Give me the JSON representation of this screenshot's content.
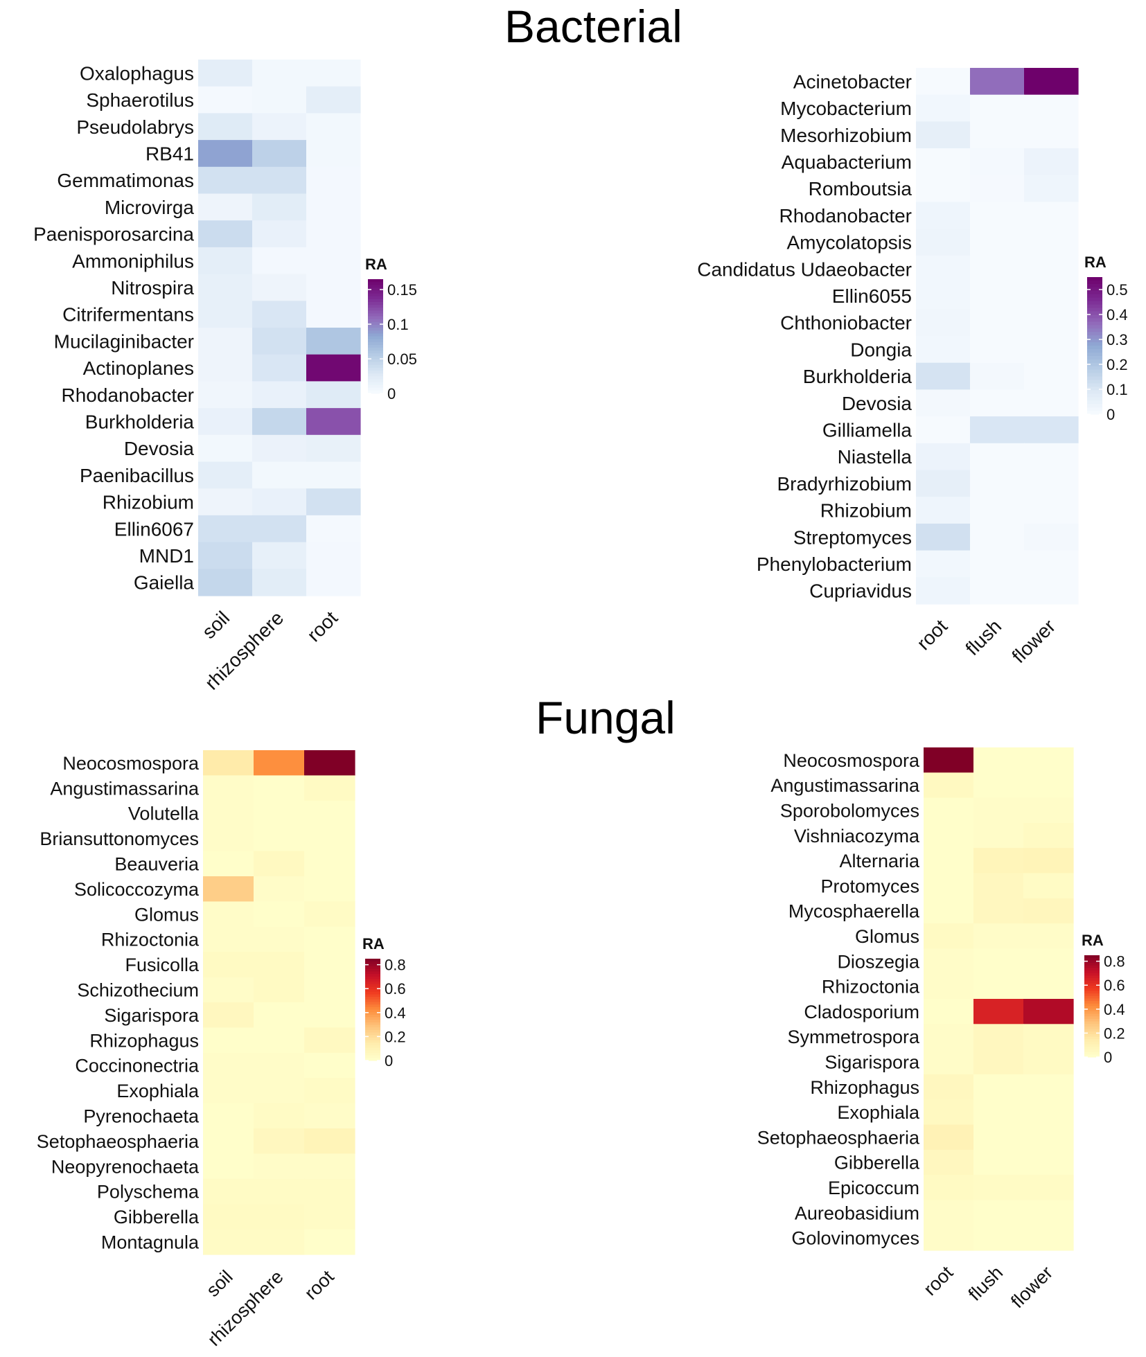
{
  "titles": {
    "bacterial": "Bacterial",
    "fungal": "Fungal"
  },
  "palettes": {
    "bacterial": [
      "#f7fbff",
      "#dde9f5",
      "#b6cce5",
      "#8fa9d4",
      "#9168b9",
      "#7c2a93",
      "#6e016b"
    ],
    "fungal": [
      "#ffffcc",
      "#ffedad",
      "#fec47c",
      "#fd8d3c",
      "#f03b20",
      "#c61028",
      "#800026"
    ]
  },
  "chart_data": [
    {
      "type": "heatmap",
      "id": "bacterial-compartment",
      "x": [
        "soil",
        "rhizosphere",
        "root"
      ],
      "y": [
        "Oxalophagus",
        "Sphaerotilus",
        "Pseudolabrys",
        "RB41",
        "Gemmatimonas",
        "Microvirga",
        "Paenisporosarcina",
        "Ammoniphilus",
        "Nitrospira",
        "Citrifermentans",
        "Mucilaginibacter",
        "Actinoplanes",
        "Rhodanobacter",
        "Burkholderia",
        "Devosia",
        "Paenibacillus",
        "Rhizobium",
        "Ellin6067",
        "MND1",
        "Gaiella"
      ],
      "values": [
        [
          0.02,
          0.005,
          0.005
        ],
        [
          0.003,
          0.005,
          0.02
        ],
        [
          0.025,
          0.012,
          0.005
        ],
        [
          0.085,
          0.05,
          0.005
        ],
        [
          0.035,
          0.035,
          0.004
        ],
        [
          0.01,
          0.022,
          0.004
        ],
        [
          0.04,
          0.015,
          0.004
        ],
        [
          0.02,
          0.004,
          0.004
        ],
        [
          0.017,
          0.01,
          0.004
        ],
        [
          0.017,
          0.03,
          0.004
        ],
        [
          0.01,
          0.035,
          0.06
        ],
        [
          0.01,
          0.03,
          0.16
        ],
        [
          0.007,
          0.015,
          0.025
        ],
        [
          0.015,
          0.045,
          0.12
        ],
        [
          0.005,
          0.013,
          0.016
        ],
        [
          0.02,
          0.005,
          0.005
        ],
        [
          0.01,
          0.015,
          0.035
        ],
        [
          0.035,
          0.035,
          0.003
        ],
        [
          0.04,
          0.017,
          0.004
        ],
        [
          0.045,
          0.022,
          0.004
        ]
      ],
      "legend": {
        "title": "RA",
        "ticks": [
          0,
          0.05,
          0.1,
          0.15
        ],
        "tick_labels": [
          "0",
          "0.05",
          "0.1",
          "0.15"
        ],
        "range": [
          0,
          0.165
        ]
      }
    },
    {
      "type": "heatmap",
      "id": "bacterial-organ",
      "x": [
        "root",
        "flush",
        "flower"
      ],
      "y": [
        "Acinetobacter",
        "Mycobacterium",
        "Mesorhizobium",
        "Aquabacterium",
        "Romboutsia",
        "Rhodanobacter",
        "Amycolatopsis",
        "Candidatus Udaeobacter",
        "Ellin6055",
        "Chthoniobacter",
        "Dongia",
        "Burkholderia",
        "Devosia",
        "Gilliamella",
        "Niastella",
        "Bradyrhizobium",
        "Rhizobium",
        "Streptomyces",
        "Phenylobacterium",
        "Cupriavidus"
      ],
      "values": [
        [
          0.005,
          0.36,
          0.55
        ],
        [
          0.02,
          0.005,
          0.005
        ],
        [
          0.06,
          0.005,
          0.005
        ],
        [
          0.005,
          0.01,
          0.04
        ],
        [
          0.005,
          0.008,
          0.03
        ],
        [
          0.03,
          0.005,
          0.005
        ],
        [
          0.035,
          0.005,
          0.005
        ],
        [
          0.02,
          0.005,
          0.005
        ],
        [
          0.02,
          0.005,
          0.005
        ],
        [
          0.025,
          0.005,
          0.005
        ],
        [
          0.02,
          0.005,
          0.005
        ],
        [
          0.11,
          0.015,
          0.005
        ],
        [
          0.015,
          0.005,
          0.005
        ],
        [
          0.005,
          0.1,
          0.1
        ],
        [
          0.04,
          0.005,
          0.005
        ],
        [
          0.06,
          0.005,
          0.005
        ],
        [
          0.03,
          0.005,
          0.005
        ],
        [
          0.12,
          0.005,
          0.015
        ],
        [
          0.02,
          0.005,
          0.005
        ],
        [
          0.03,
          0.005,
          0.005
        ]
      ],
      "legend": {
        "title": "RA",
        "ticks": [
          0,
          0.1,
          0.2,
          0.3,
          0.4,
          0.5
        ],
        "tick_labels": [
          "0",
          "0.1",
          "0.2",
          "0.3",
          "0.4",
          "0.5"
        ],
        "range": [
          0,
          0.55
        ]
      }
    },
    {
      "type": "heatmap",
      "id": "fungal-compartment",
      "x": [
        "soil",
        "rhizosphere",
        "root"
      ],
      "y": [
        "Neocosmospora",
        "Angustimassarina",
        "Volutella",
        "Briansuttonomyces",
        "Beauveria",
        "Solicoccozyma",
        "Glomus",
        "Rhizoctonia",
        "Fusicolla",
        "Schizothecium",
        "Sigarispora",
        "Rhizophagus",
        "Coccinonectria",
        "Exophiala",
        "Pyrenochaeta",
        "Setophaeosphaeria",
        "Neopyrenochaeta",
        "Polyschema",
        "Gibberella",
        "Montagnula"
      ],
      "values": [
        [
          0.15,
          0.42,
          0.85
        ],
        [
          0.02,
          0.01,
          0.04
        ],
        [
          0.02,
          0.01,
          0.01
        ],
        [
          0.02,
          0.01,
          0.01
        ],
        [
          0.01,
          0.05,
          0.01
        ],
        [
          0.25,
          0.02,
          0.01
        ],
        [
          0.02,
          0.01,
          0.03
        ],
        [
          0.02,
          0.02,
          0.01
        ],
        [
          0.04,
          0.04,
          0.01
        ],
        [
          0.02,
          0.04,
          0.01
        ],
        [
          0.06,
          0.01,
          0.01
        ],
        [
          0.01,
          0.01,
          0.05
        ],
        [
          0.02,
          0.02,
          0.01
        ],
        [
          0.02,
          0.02,
          0.03
        ],
        [
          0.01,
          0.03,
          0.02
        ],
        [
          0.01,
          0.06,
          0.09
        ],
        [
          0.01,
          0.02,
          0.02
        ],
        [
          0.03,
          0.03,
          0.03
        ],
        [
          0.04,
          0.04,
          0.03
        ],
        [
          0.03,
          0.03,
          0.01
        ]
      ],
      "legend": {
        "title": "RA",
        "ticks": [
          0,
          0.2,
          0.4,
          0.6,
          0.8
        ],
        "tick_labels": [
          "0",
          "0.2",
          "0.4",
          "0.6",
          "0.8"
        ],
        "range": [
          0,
          0.85
        ]
      }
    },
    {
      "type": "heatmap",
      "id": "fungal-organ",
      "x": [
        "root",
        "flush",
        "flower"
      ],
      "y": [
        "Neocosmospora",
        "Angustimassarina",
        "Sporobolomyces",
        "Vishniacozyma",
        "Alternaria",
        "Protomyces",
        "Mycosphaerella",
        "Glomus",
        "Dioszegia",
        "Rhizoctonia",
        "Cladosporium",
        "Symmetrospora",
        "Sigarispora",
        "Rhizophagus",
        "Exophiala",
        "Setophaeosphaeria",
        "Gibberella",
        "Epicoccum",
        "Aureobasidium",
        "Golovinomyces"
      ],
      "values": [
        [
          0.85,
          0.01,
          0.01
        ],
        [
          0.05,
          0.01,
          0.01
        ],
        [
          0.01,
          0.02,
          0.02
        ],
        [
          0.01,
          0.02,
          0.04
        ],
        [
          0.01,
          0.08,
          0.09
        ],
        [
          0.01,
          0.06,
          0.03
        ],
        [
          0.01,
          0.06,
          0.07
        ],
        [
          0.04,
          0.02,
          0.02
        ],
        [
          0.02,
          0.01,
          0.01
        ],
        [
          0.02,
          0.01,
          0.01
        ],
        [
          0.01,
          0.65,
          0.75
        ],
        [
          0.02,
          0.06,
          0.04
        ],
        [
          0.02,
          0.06,
          0.04
        ],
        [
          0.06,
          0.01,
          0.01
        ],
        [
          0.05,
          0.01,
          0.01
        ],
        [
          0.1,
          0.01,
          0.01
        ],
        [
          0.06,
          0.01,
          0.01
        ],
        [
          0.04,
          0.03,
          0.03
        ],
        [
          0.02,
          0.01,
          0.01
        ],
        [
          0.02,
          0.01,
          0.01
        ]
      ],
      "legend": {
        "title": "RA",
        "ticks": [
          0,
          0.2,
          0.4,
          0.6,
          0.8
        ],
        "tick_labels": [
          "0",
          "0.2",
          "0.4",
          "0.6",
          "0.8"
        ],
        "range": [
          0,
          0.85
        ]
      }
    }
  ]
}
